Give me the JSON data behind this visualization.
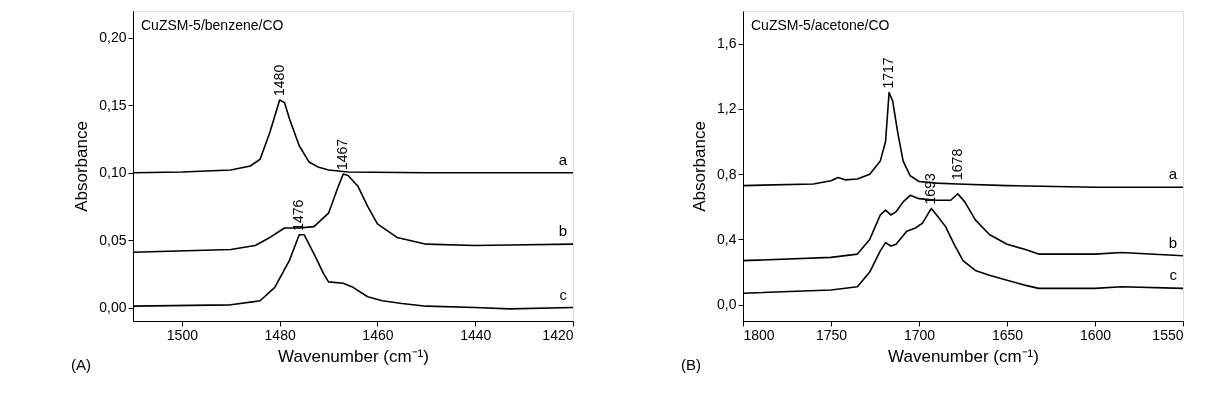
{
  "chart_data": [
    {
      "type": "line",
      "title": "CuZSM-5/benzene/CO",
      "xlabel": "Wavenumber (cm⁻¹)",
      "ylabel": "Absorbance",
      "xlim": [
        1510,
        1420
      ],
      "xticks": [
        1500,
        1480,
        1460,
        1440,
        1420
      ],
      "ylim": [
        -0.01,
        0.22
      ],
      "yticks": [
        {
          "value": 0,
          "label": "0,00"
        },
        {
          "value": 0.05,
          "label": "0,05"
        },
        {
          "value": 0.1,
          "label": "0,10"
        },
        {
          "value": 0.15,
          "label": "0,15"
        },
        {
          "value": 0.2,
          "label": "0,20"
        }
      ],
      "grid": false,
      "legend": false,
      "series": [
        {
          "name": "a",
          "color": "#000000",
          "x": [
            1510,
            1500,
            1490,
            1486,
            1484,
            1482,
            1480,
            1479,
            1478,
            1476,
            1474,
            1472,
            1470,
            1466,
            1450,
            1420
          ],
          "values": [
            0.1,
            0.1005,
            0.102,
            0.105,
            0.11,
            0.13,
            0.154,
            0.152,
            0.14,
            0.12,
            0.108,
            0.104,
            0.102,
            0.1005,
            0.1,
            0.1
          ]
        },
        {
          "name": "b",
          "color": "#000000",
          "x": [
            1510,
            1490,
            1485,
            1482,
            1479,
            1476,
            1473,
            1470,
            1468,
            1467,
            1466,
            1464,
            1462,
            1460,
            1456,
            1450,
            1440,
            1420
          ],
          "values": [
            0.041,
            0.043,
            0.046,
            0.052,
            0.059,
            0.059,
            0.06,
            0.07,
            0.09,
            0.099,
            0.098,
            0.09,
            0.075,
            0.062,
            0.052,
            0.047,
            0.046,
            0.047
          ]
        },
        {
          "name": "c",
          "color": "#000000",
          "x": [
            1510,
            1490,
            1484,
            1481,
            1478,
            1476,
            1475,
            1473,
            1471,
            1470,
            1467,
            1465,
            1462,
            1459,
            1455,
            1450,
            1440,
            1433,
            1420
          ],
          "values": [
            0.001,
            0.002,
            0.005,
            0.015,
            0.035,
            0.054,
            0.054,
            0.04,
            0.025,
            0.019,
            0.018,
            0.015,
            0.008,
            0.005,
            0.003,
            0.001,
            0.0,
            -0.001,
            0.0
          ]
        }
      ],
      "annotations": [
        {
          "text": "1480",
          "x": 1480,
          "y": 0.154
        },
        {
          "text": "1467",
          "x": 1467,
          "y": 0.099
        },
        {
          "text": "1476",
          "x": 1476,
          "y": 0.054
        },
        "(A)"
      ]
    },
    {
      "type": "line",
      "title": "CuZSM-5/acetone/CO",
      "xlabel": "Wavenumber (cm⁻¹)",
      "ylabel": "Absorbance",
      "xlim": [
        1800,
        1550
      ],
      "xticks": [
        1800,
        1750,
        1700,
        1650,
        1600,
        1550
      ],
      "ylim": [
        -0.1,
        1.8
      ],
      "yticks": [
        {
          "value": 0,
          "label": "0,0"
        },
        {
          "value": 0.4,
          "label": "0,4"
        },
        {
          "value": 0.8,
          "label": "0,8"
        },
        {
          "value": 1.2,
          "label": "1,2"
        },
        {
          "value": 1.6,
          "label": "1,6"
        }
      ],
      "grid": false,
      "legend": false,
      "series": [
        {
          "name": "a",
          "color": "#000000",
          "x": [
            1800,
            1760,
            1750,
            1746,
            1742,
            1735,
            1728,
            1722,
            1719,
            1717,
            1715,
            1712,
            1709,
            1705,
            1700,
            1690,
            1678,
            1650,
            1600,
            1550
          ],
          "values": [
            0.73,
            0.74,
            0.76,
            0.78,
            0.765,
            0.77,
            0.8,
            0.88,
            1.0,
            1.3,
            1.25,
            1.05,
            0.88,
            0.79,
            0.755,
            0.745,
            0.74,
            0.73,
            0.72,
            0.72
          ]
        },
        {
          "name": "b",
          "color": "#000000",
          "x": [
            1800,
            1750,
            1735,
            1728,
            1722,
            1719,
            1716,
            1713,
            1709,
            1705,
            1700,
            1690,
            1682,
            1678,
            1674,
            1668,
            1660,
            1650,
            1640,
            1632,
            1600,
            1585,
            1550
          ],
          "values": [
            0.27,
            0.29,
            0.31,
            0.4,
            0.55,
            0.58,
            0.55,
            0.57,
            0.63,
            0.67,
            0.65,
            0.64,
            0.64,
            0.68,
            0.63,
            0.52,
            0.43,
            0.37,
            0.34,
            0.31,
            0.31,
            0.32,
            0.3
          ]
        },
        {
          "name": "c",
          "color": "#000000",
          "x": [
            1800,
            1750,
            1735,
            1728,
            1722,
            1719,
            1716,
            1713,
            1707,
            1702,
            1698,
            1693,
            1690,
            1685,
            1680,
            1675,
            1668,
            1660,
            1650,
            1640,
            1632,
            1600,
            1585,
            1550
          ],
          "values": [
            0.07,
            0.09,
            0.11,
            0.2,
            0.33,
            0.38,
            0.36,
            0.37,
            0.45,
            0.47,
            0.5,
            0.59,
            0.55,
            0.48,
            0.37,
            0.27,
            0.21,
            0.18,
            0.15,
            0.12,
            0.1,
            0.1,
            0.11,
            0.1
          ]
        }
      ],
      "annotations": [
        {
          "text": "1717",
          "x": 1717,
          "y": 1.3
        },
        {
          "text": "1678",
          "x": 1678,
          "y": 0.74
        },
        {
          "text": "1693",
          "x": 1693,
          "y": 0.59
        },
        "(B)"
      ]
    }
  ]
}
